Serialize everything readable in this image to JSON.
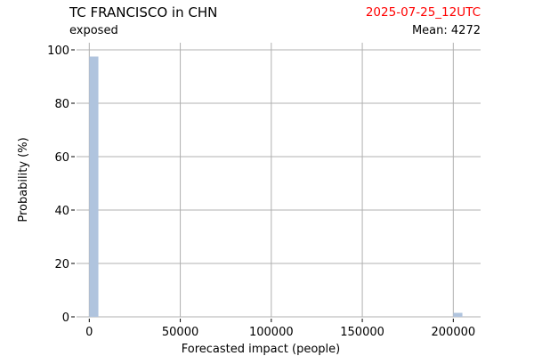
{
  "header": {
    "title": "TC FRANCISCO in CHN",
    "subtitle": "exposed",
    "date": "2025-07-25_12UTC",
    "mean": "Mean: 4272",
    "date_color": "#ff0000"
  },
  "chart_data": {
    "type": "bar",
    "title": "TC FRANCISCO in CHN",
    "xlabel": "Forecasted impact (people)",
    "ylabel": "Probability (%)",
    "xlim": [
      -7000,
      215000
    ],
    "ylim": [
      0,
      100
    ],
    "xticks": [
      0,
      50000,
      100000,
      150000,
      200000
    ],
    "yticks": [
      0,
      20,
      40,
      60,
      80,
      100
    ],
    "grid": true,
    "bar_color": "#b0c4de",
    "bin_width": 5000,
    "bins": [
      {
        "x0": 0,
        "x1": 5000,
        "value": 97.5
      },
      {
        "x0": 200000,
        "x1": 205000,
        "value": 1.5
      }
    ]
  }
}
